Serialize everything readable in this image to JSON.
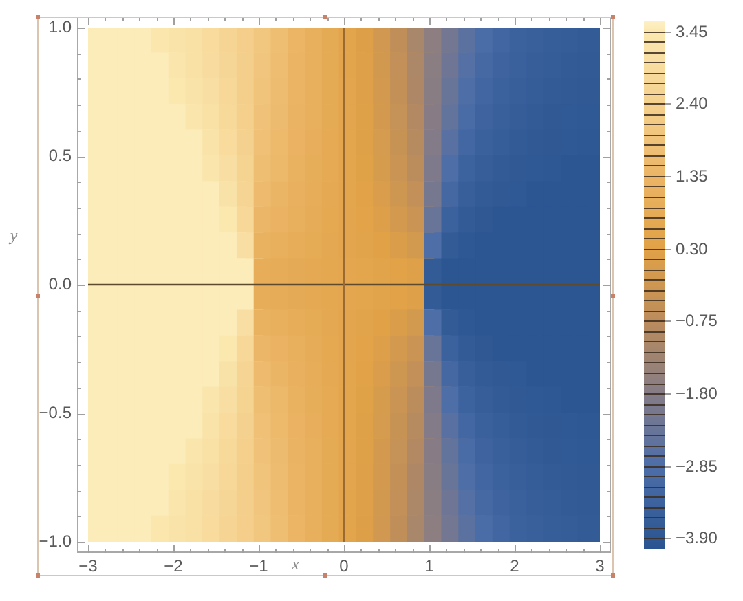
{
  "chart_data": {
    "type": "scatter",
    "xlabel": "x",
    "ylabel": "y",
    "marker": "square",
    "x": [
      -2.9,
      -2.7,
      -2.5,
      -2.3,
      -2.1,
      -1.9,
      -1.7,
      -1.5,
      -1.3,
      -1.1,
      -0.9,
      -0.7,
      -0.5,
      -0.3,
      -0.1,
      0.1,
      0.3,
      0.5,
      0.7,
      0.9,
      1.1,
      1.3,
      1.5,
      1.7,
      1.9,
      2.1,
      2.3,
      2.5,
      2.7,
      2.9,
      -2.9,
      -2.7,
      -2.5,
      -2.3,
      -2.1,
      -1.9,
      -1.7,
      -1.5,
      -1.3,
      -1.1,
      -0.9,
      -0.7,
      -0.5,
      -0.3,
      -0.1,
      0.1,
      0.3,
      0.5,
      0.7,
      0.9,
      1.1,
      1.3,
      1.5,
      1.7,
      1.9,
      2.1,
      2.3,
      2.5,
      2.7,
      2.9,
      -2.9,
      -2.7,
      -2.5,
      -2.3,
      -2.1,
      -1.9,
      -1.7,
      -1.5,
      -1.3,
      -1.1,
      -0.9,
      -0.7,
      -0.5,
      -0.3,
      -0.1,
      0.1,
      0.3,
      0.5,
      0.7,
      0.9,
      1.1,
      1.3,
      1.5,
      1.7,
      1.9,
      2.1,
      2.3,
      2.5,
      2.7,
      2.9,
      -2.9,
      -2.7,
      -2.5,
      -2.3,
      -2.1,
      -1.9,
      -1.7,
      -1.5,
      -1.3,
      -1.1,
      -0.9,
      -0.7,
      -0.5,
      -0.3,
      -0.1,
      0.1,
      0.3,
      0.5,
      0.7,
      0.9,
      1.1,
      1.3,
      1.5,
      1.7,
      1.9,
      2.1,
      2.3,
      2.5,
      2.7,
      2.9,
      -2.9,
      -2.7,
      -2.5,
      -2.3,
      -2.1,
      -1.9,
      -1.7,
      -1.5,
      -1.3,
      -1.1,
      -0.9,
      -0.7,
      -0.5,
      -0.3,
      -0.1,
      0.1,
      0.3,
      0.5,
      0.7,
      0.9,
      1.1,
      1.3,
      1.5,
      1.7,
      1.9,
      2.1,
      2.3,
      2.5,
      2.7,
      2.9,
      -2.9,
      -2.7,
      -2.5,
      -2.3,
      -2.1,
      -1.9,
      -1.7,
      -1.5,
      -1.3,
      -1.1,
      -0.9,
      -0.7,
      -0.5,
      -0.3,
      -0.1,
      0.1,
      0.3,
      0.5,
      0.7,
      0.9,
      1.1,
      1.3,
      1.5,
      1.7,
      1.9,
      2.1,
      2.3,
      2.5,
      2.7,
      2.9,
      -2.9,
      -2.7,
      -2.5,
      -2.3,
      -2.1,
      -1.9,
      -1.7,
      -1.5,
      -1.3,
      -1.1,
      -0.9,
      -0.7,
      -0.5,
      -0.3,
      -0.1,
      0.1,
      0.3,
      0.5,
      0.7,
      0.9,
      1.1,
      1.3,
      1.5,
      1.7,
      1.9,
      2.1,
      2.3,
      2.5,
      2.7,
      2.9,
      -2.9,
      -2.7,
      -2.5,
      -2.3,
      -2.1,
      -1.9,
      -1.7,
      -1.5,
      -1.3,
      -1.1,
      -0.9,
      -0.7,
      -0.5,
      -0.3,
      -0.1,
      0.1,
      0.3,
      0.5,
      0.7,
      0.9,
      1.1,
      1.3,
      1.5,
      1.7,
      1.9,
      2.1,
      2.3,
      2.5,
      2.7,
      2.9,
      -2.9,
      -2.7,
      -2.5,
      -2.3,
      -2.1,
      -1.9,
      -1.7,
      -1.5,
      -1.3,
      -1.1,
      -0.9,
      -0.7,
      -0.5,
      -0.3,
      -0.1,
      0.1,
      0.3,
      0.5,
      0.7,
      0.9,
      1.1,
      1.3,
      1.5,
      1.7,
      1.9,
      2.1,
      2.3,
      2.5,
      2.7,
      2.9,
      -2.9,
      -2.7,
      -2.5,
      -2.3,
      -2.1,
      -1.9,
      -1.7,
      -1.5,
      -1.3,
      -1.1,
      -0.9,
      -0.7,
      -0.5,
      -0.3,
      -0.1,
      0.1,
      0.3,
      0.5,
      0.7,
      0.9,
      1.1,
      1.3,
      1.5,
      1.7,
      1.9,
      2.1,
      2.3,
      2.5,
      2.7,
      2.9,
      -2.9,
      -2.7,
      -2.5,
      -2.3,
      -2.1,
      -1.9,
      -1.7,
      -1.5,
      -1.3,
      -1.1,
      -0.9,
      -0.7,
      -0.5,
      -0.3,
      -0.1,
      0.1,
      0.3,
      0.5,
      0.7,
      0.9,
      1.1,
      1.3,
      1.5,
      1.7,
      1.9,
      2.1,
      2.3,
      2.5,
      2.7,
      2.9,
      -2.9,
      -2.7,
      -2.5,
      -2.3,
      -2.1,
      -1.9,
      -1.7,
      -1.5,
      -1.3,
      -1.1,
      -0.9,
      -0.7,
      -0.5,
      -0.3,
      -0.1,
      0.1,
      0.3,
      0.5,
      0.7,
      0.9,
      1.1,
      1.3,
      1.5,
      1.7,
      1.9,
      2.1,
      2.3,
      2.5,
      2.7,
      2.9,
      -2.9,
      -2.7,
      -2.5,
      -2.3,
      -2.1,
      -1.9,
      -1.7,
      -1.5,
      -1.3,
      -1.1,
      -0.9,
      -0.7,
      -0.5,
      -0.3,
      -0.1,
      0.1,
      0.3,
      0.5,
      0.7,
      0.9,
      1.1,
      1.3,
      1.5,
      1.7,
      1.9,
      2.1,
      2.3,
      2.5,
      2.7,
      2.9,
      -2.9,
      -2.7,
      -2.5,
      -2.3,
      -2.1,
      -1.9,
      -1.7,
      -1.5,
      -1.3,
      -1.1,
      -0.9,
      -0.7,
      -0.5,
      -0.3,
      -0.1,
      0.1,
      0.3,
      0.5,
      0.7,
      0.9,
      1.1,
      1.3,
      1.5,
      1.7,
      1.9,
      2.1,
      2.3,
      2.5,
      2.7,
      2.9,
      -2.9,
      -2.7,
      -2.5,
      -2.3,
      -2.1,
      -1.9,
      -1.7,
      -1.5,
      -1.3,
      -1.1,
      -0.9,
      -0.7,
      -0.5,
      -0.3,
      -0.1,
      0.1,
      0.3,
      0.5,
      0.7,
      0.9,
      1.1,
      1.3,
      1.5,
      1.7,
      1.9,
      2.1,
      2.3,
      2.5,
      2.7,
      2.9,
      -2.9,
      -2.7,
      -2.5,
      -2.3,
      -2.1,
      -1.9,
      -1.7,
      -1.5,
      -1.3,
      -1.1,
      -0.9,
      -0.7,
      -0.5,
      -0.3,
      -0.1,
      0.1,
      0.3,
      0.5,
      0.7,
      0.9,
      1.1,
      1.3,
      1.5,
      1.7,
      1.9,
      2.1,
      2.3,
      2.5,
      2.7,
      2.9,
      -2.9,
      -2.7,
      -2.5,
      -2.3,
      -2.1,
      -1.9,
      -1.7,
      -1.5,
      -1.3,
      -1.1,
      -0.9,
      -0.7,
      -0.5,
      -0.3,
      -0.1,
      0.1,
      0.3,
      0.5,
      0.7,
      0.9,
      1.1,
      1.3,
      1.5,
      1.7,
      1.9,
      2.1,
      2.3,
      2.5,
      2.7,
      2.9,
      -2.9,
      -2.7,
      -2.5,
      -2.3,
      -2.1,
      -1.9,
      -1.7,
      -1.5,
      -1.3,
      -1.1,
      -0.9,
      -0.7,
      -0.5,
      -0.3,
      -0.1,
      0.1,
      0.3,
      0.5,
      0.7,
      0.9,
      1.1,
      1.3,
      1.5,
      1.7,
      1.9,
      2.1,
      2.3,
      2.5,
      2.7,
      2.9,
      -2.9,
      -2.7,
      -2.5,
      -2.3,
      -2.1,
      -1.9,
      -1.7,
      -1.5,
      -1.3,
      -1.1,
      -0.9,
      -0.7,
      -0.5,
      -0.3,
      -0.1,
      0.1,
      0.3,
      0.5,
      0.7,
      0.9,
      1.1,
      1.3,
      1.5,
      1.7,
      1.9,
      2.1,
      2.3,
      2.5,
      2.7,
      2.9,
      -2.9,
      -2.7,
      -2.5,
      -2.3,
      -2.1,
      -1.9,
      -1.7,
      -1.5,
      -1.3,
      -1.1,
      -0.9,
      -0.7,
      -0.5,
      -0.3,
      -0.1,
      0.1,
      0.3,
      0.5,
      0.7,
      0.9,
      1.1,
      1.3,
      1.5,
      1.7,
      1.9,
      2.1,
      2.3,
      2.5,
      2.7,
      2.9
    ],
    "values": [
      0.95,
      0.95,
      0.95,
      0.95,
      0.95,
      0.95,
      0.95,
      0.95,
      0.95,
      0.95,
      0.95,
      0.95,
      0.95,
      0.95,
      0.95,
      0.95,
      0.95,
      0.95,
      0.95,
      0.95,
      0.95,
      0.95,
      0.95,
      0.95,
      0.95,
      0.95,
      0.95,
      0.95,
      0.95,
      0.95,
      0.85,
      0.85,
      0.85,
      0.85,
      0.85,
      0.85,
      0.85,
      0.85,
      0.85,
      0.85,
      0.85,
      0.85,
      0.85,
      0.85,
      0.85,
      0.85,
      0.85,
      0.85,
      0.85,
      0.85,
      0.85,
      0.85,
      0.85,
      0.85,
      0.85,
      0.85,
      0.85,
      0.85,
      0.85,
      0.85,
      0.75,
      0.75,
      0.75,
      0.75,
      0.75,
      0.75,
      0.75,
      0.75,
      0.75,
      0.75,
      0.75,
      0.75,
      0.75,
      0.75,
      0.75,
      0.75,
      0.75,
      0.75,
      0.75,
      0.75,
      0.75,
      0.75,
      0.75,
      0.75,
      0.75,
      0.75,
      0.75,
      0.75,
      0.75,
      0.75,
      0.65,
      0.65,
      0.65,
      0.65,
      0.65,
      0.65,
      0.65,
      0.65,
      0.65,
      0.65,
      0.65,
      0.65,
      0.65,
      0.65,
      0.65,
      0.65,
      0.65,
      0.65,
      0.65,
      0.65,
      0.65,
      0.65,
      0.65,
      0.65,
      0.65,
      0.65,
      0.65,
      0.65,
      0.65,
      0.65,
      0.55,
      0.55,
      0.55,
      0.55,
      0.55,
      0.55,
      0.55,
      0.55,
      0.55,
      0.55,
      0.55,
      0.55,
      0.55,
      0.55,
      0.55,
      0.55,
      0.55,
      0.55,
      0.55,
      0.55,
      0.55,
      0.55,
      0.55,
      0.55,
      0.55,
      0.55,
      0.55,
      0.55,
      0.55,
      0.55,
      0.45,
      0.45,
      0.45,
      0.45,
      0.45,
      0.45,
      0.45,
      0.45,
      0.45,
      0.45,
      0.45,
      0.45,
      0.45,
      0.45,
      0.45,
      0.45,
      0.45,
      0.45,
      0.45,
      0.45,
      0.45,
      0.45,
      0.45,
      0.45,
      0.45,
      0.45,
      0.45,
      0.45,
      0.45,
      0.45,
      0.35,
      0.35,
      0.35,
      0.35,
      0.35,
      0.35,
      0.35,
      0.35,
      0.35,
      0.35,
      0.35,
      0.35,
      0.35,
      0.35,
      0.35,
      0.35,
      0.35,
      0.35,
      0.35,
      0.35,
      0.35,
      0.35,
      0.35,
      0.35,
      0.35,
      0.35,
      0.35,
      0.35,
      0.35,
      0.35,
      0.25,
      0.25,
      0.25,
      0.25,
      0.25,
      0.25,
      0.25,
      0.25,
      0.25,
      0.25,
      0.25,
      0.25,
      0.25,
      0.25,
      0.25,
      0.25,
      0.25,
      0.25,
      0.25,
      0.25,
      0.25,
      0.25,
      0.25,
      0.25,
      0.25,
      0.25,
      0.25,
      0.25,
      0.25,
      0.25,
      0.15,
      0.15,
      0.15,
      0.15,
      0.15,
      0.15,
      0.15,
      0.15,
      0.15,
      0.15,
      0.15,
      0.15,
      0.15,
      0.15,
      0.15,
      0.15,
      0.15,
      0.15,
      0.15,
      0.15,
      0.15,
      0.15,
      0.15,
      0.15,
      0.15,
      0.15,
      0.15,
      0.15,
      0.15,
      0.15,
      0.05,
      0.05,
      0.05,
      0.05,
      0.05,
      0.05,
      0.05,
      0.05,
      0.05,
      0.05,
      0.05,
      0.05,
      0.05,
      0.05,
      0.05,
      0.05,
      0.05,
      0.05,
      0.05,
      0.05,
      0.05,
      0.05,
      0.05,
      0.05,
      0.05,
      0.05,
      0.05,
      0.05,
      0.05,
      0.05,
      -0.05,
      -0.05,
      -0.05,
      -0.05,
      -0.05,
      -0.05,
      -0.05,
      -0.05,
      -0.05,
      -0.05,
      -0.05,
      -0.05,
      -0.05,
      -0.05,
      -0.05,
      -0.05,
      -0.05,
      -0.05,
      -0.05,
      -0.05,
      -0.05,
      -0.05,
      -0.05,
      -0.05,
      -0.05,
      -0.05,
      -0.05,
      -0.05,
      -0.05,
      -0.05,
      -0.15,
      -0.15,
      -0.15,
      -0.15,
      -0.15,
      -0.15,
      -0.15,
      -0.15,
      -0.15,
      -0.15,
      -0.15,
      -0.15,
      -0.15,
      -0.15,
      -0.15,
      -0.15,
      -0.15,
      -0.15,
      -0.15,
      -0.15,
      -0.15,
      -0.15,
      -0.15,
      -0.15,
      -0.15,
      -0.15,
      -0.15,
      -0.15,
      -0.15,
      -0.15,
      -0.25,
      -0.25,
      -0.25,
      -0.25,
      -0.25,
      -0.25,
      -0.25,
      -0.25,
      -0.25,
      -0.25,
      -0.25,
      -0.25,
      -0.25,
      -0.25,
      -0.25,
      -0.25,
      -0.25,
      -0.25,
      -0.25,
      -0.25,
      -0.25,
      -0.25,
      -0.25,
      -0.25,
      -0.25,
      -0.25,
      -0.25,
      -0.25,
      -0.25,
      -0.25,
      -0.35,
      -0.35,
      -0.35,
      -0.35,
      -0.35,
      -0.35,
      -0.35,
      -0.35,
      -0.35,
      -0.35,
      -0.35,
      -0.35,
      -0.35,
      -0.35,
      -0.35,
      -0.35,
      -0.35,
      -0.35,
      -0.35,
      -0.35,
      -0.35,
      -0.35,
      -0.35,
      -0.35,
      -0.35,
      -0.35,
      -0.35,
      -0.35,
      -0.35,
      -0.35,
      -0.45,
      -0.45,
      -0.45,
      -0.45,
      -0.45,
      -0.45,
      -0.45,
      -0.45,
      -0.45,
      -0.45,
      -0.45,
      -0.45,
      -0.45,
      -0.45,
      -0.45,
      -0.45,
      -0.45,
      -0.45,
      -0.45,
      -0.45,
      -0.45,
      -0.45,
      -0.45,
      -0.45,
      -0.45,
      -0.45,
      -0.45,
      -0.45,
      -0.45,
      -0.45,
      -0.55,
      -0.55,
      -0.55,
      -0.55,
      -0.55,
      -0.55,
      -0.55,
      -0.55,
      -0.55,
      -0.55,
      -0.55,
      -0.55,
      -0.55,
      -0.55,
      -0.55,
      -0.55,
      -0.55,
      -0.55,
      -0.55,
      -0.55,
      -0.55,
      -0.55,
      -0.55,
      -0.55,
      -0.55,
      -0.55,
      -0.55,
      -0.55,
      -0.55,
      -0.55,
      -0.65,
      -0.65,
      -0.65,
      -0.65,
      -0.65,
      -0.65,
      -0.65,
      -0.65,
      -0.65,
      -0.65,
      -0.65,
      -0.65,
      -0.65,
      -0.65,
      -0.65,
      -0.65,
      -0.65,
      -0.65,
      -0.65,
      -0.65,
      -0.65,
      -0.65,
      -0.65,
      -0.65,
      -0.65,
      -0.65,
      -0.65,
      -0.65,
      -0.65,
      -0.65,
      -0.75,
      -0.75,
      -0.75,
      -0.75,
      -0.75,
      -0.75,
      -0.75,
      -0.75,
      -0.75,
      -0.75,
      -0.75,
      -0.75,
      -0.75,
      -0.75,
      -0.75,
      -0.75,
      -0.75,
      -0.75,
      -0.75,
      -0.75,
      -0.75,
      -0.75,
      -0.75,
      -0.75,
      -0.75,
      -0.75,
      -0.75,
      -0.75,
      -0.75,
      -0.75,
      -0.85,
      -0.85,
      -0.85,
      -0.85,
      -0.85,
      -0.85,
      -0.85,
      -0.85,
      -0.85,
      -0.85,
      -0.85,
      -0.85,
      -0.85,
      -0.85,
      -0.85,
      -0.85,
      -0.85,
      -0.85,
      -0.85,
      -0.85,
      -0.85,
      -0.85,
      -0.85,
      -0.85,
      -0.85,
      -0.85,
      -0.85,
      -0.85,
      -0.85,
      -0.85,
      -0.95,
      -0.95,
      -0.95,
      -0.95,
      -0.95,
      -0.95,
      -0.95,
      -0.95,
      -0.95,
      -0.95,
      -0.95,
      -0.95,
      -0.95,
      -0.95,
      -0.95,
      -0.95,
      -0.95,
      -0.95,
      -0.95,
      -0.95,
      -0.95,
      -0.95,
      -0.95,
      -0.95,
      -0.95,
      -0.95,
      -0.95,
      -0.95,
      -0.95,
      -0.95
    ],
    "cvalues": [
      3.52,
      3.52,
      3.52,
      3.52,
      3.4,
      3.23,
      3.07,
      2.85,
      2.59,
      2.3,
      2.0,
      1.69,
      1.33,
      1.06,
      0.75,
      0.48,
      0.2,
      -0.16,
      -0.61,
      -1.11,
      -1.66,
      -2.14,
      -2.58,
      -2.95,
      -3.25,
      -3.41,
      -3.52,
      -3.61,
      -3.67,
      -3.72,
      3.52,
      3.52,
      3.52,
      3.52,
      3.52,
      3.31,
      3.15,
      2.92,
      2.64,
      2.32,
      1.95,
      1.65,
      1.3,
      1.05,
      0.74,
      0.48,
      0.21,
      -0.13,
      -0.57,
      -1.05,
      -1.69,
      -2.22,
      -2.7,
      -3.08,
      -3.35,
      -3.48,
      -3.59,
      -3.66,
      -3.72,
      -3.76,
      3.52,
      3.52,
      3.52,
      3.52,
      3.52,
      3.43,
      3.22,
      3.01,
      2.7,
      2.34,
      1.91,
      1.62,
      1.28,
      1.03,
      0.74,
      0.49,
      0.22,
      -0.11,
      -0.53,
      -1.0,
      -1.72,
      -2.33,
      -2.83,
      -3.23,
      -3.43,
      -3.56,
      -3.65,
      -3.72,
      -3.77,
      -3.81,
      3.52,
      3.52,
      3.52,
      3.52,
      3.52,
      3.52,
      3.32,
      3.1,
      2.77,
      2.38,
      1.85,
      1.58,
      1.25,
      1.01,
      0.73,
      0.49,
      0.24,
      -0.08,
      -0.48,
      -0.93,
      -1.77,
      -2.45,
      -3.0,
      -3.36,
      -3.53,
      -3.64,
      -3.72,
      -3.78,
      -3.82,
      -3.85,
      3.52,
      3.52,
      3.52,
      3.52,
      3.52,
      3.52,
      3.52,
      3.21,
      2.87,
      2.42,
      1.78,
      1.52,
      1.21,
      0.99,
      0.72,
      0.5,
      0.26,
      -0.04,
      -0.42,
      -0.84,
      -1.84,
      -2.62,
      -3.2,
      -3.47,
      -3.63,
      -3.72,
      -3.78,
      -3.83,
      -3.87,
      -3.91,
      3.52,
      3.52,
      3.52,
      3.52,
      3.52,
      3.52,
      3.52,
      3.35,
      3.01,
      2.47,
      1.69,
      1.46,
      1.17,
      0.96,
      0.72,
      0.5,
      0.28,
      0.01,
      -0.35,
      -0.74,
      -1.93,
      -2.83,
      -3.38,
      -3.6,
      -3.72,
      -3.8,
      -3.85,
      -3.89,
      -3.97,
      -3.97,
      3.52,
      3.52,
      3.52,
      3.52,
      3.52,
      3.52,
      3.52,
      3.52,
      3.17,
      2.55,
      1.55,
      1.34,
      1.1,
      0.91,
      0.7,
      0.52,
      0.33,
      0.08,
      -0.22,
      -0.57,
      -2.08,
      -3.13,
      -3.55,
      -3.72,
      -3.81,
      -3.87,
      -3.97,
      -3.97,
      -3.97,
      -3.97,
      3.52,
      3.52,
      3.52,
      3.52,
      3.52,
      3.52,
      3.52,
      3.52,
      3.43,
      2.7,
      1.38,
      1.21,
      1.01,
      0.86,
      0.68,
      0.53,
      0.37,
      0.18,
      -0.08,
      -0.36,
      -2.33,
      -3.43,
      -3.72,
      -3.84,
      -3.97,
      -3.97,
      -3.97,
      -3.97,
      -3.97,
      -3.97,
      3.52,
      3.52,
      3.52,
      3.52,
      3.52,
      3.52,
      3.52,
      3.52,
      3.52,
      3.01,
      1.17,
      1.04,
      0.9,
      0.79,
      0.66,
      0.55,
      0.44,
      0.29,
      0.11,
      -0.1,
      -2.83,
      -3.72,
      -3.89,
      -3.97,
      -3.97,
      -3.97,
      -3.97,
      -3.97,
      -3.97,
      -3.97,
      3.52,
      3.52,
      3.52,
      3.52,
      3.52,
      3.52,
      3.52,
      3.52,
      3.52,
      3.52,
      0.91,
      0.84,
      0.76,
      0.7,
      0.63,
      0.57,
      0.51,
      0.43,
      0.33,
      0.22,
      -3.72,
      -3.97,
      -3.97,
      -3.97,
      -3.97,
      -3.97,
      -3.97,
      -3.97,
      -3.97,
      -3.97,
      3.52,
      3.52,
      3.52,
      3.52,
      3.52,
      3.52,
      3.52,
      3.52,
      3.52,
      3.52,
      0.91,
      0.84,
      0.76,
      0.7,
      0.63,
      0.57,
      0.51,
      0.43,
      0.33,
      0.22,
      -3.72,
      -3.97,
      -3.97,
      -3.97,
      -3.97,
      -3.97,
      -3.97,
      -3.97,
      -3.97,
      -3.97,
      3.52,
      3.52,
      3.52,
      3.52,
      3.52,
      3.52,
      3.52,
      3.52,
      3.52,
      3.01,
      1.17,
      1.04,
      0.9,
      0.79,
      0.66,
      0.55,
      0.44,
      0.29,
      0.11,
      -0.1,
      -2.83,
      -3.72,
      -3.89,
      -3.97,
      -3.97,
      -3.97,
      -3.97,
      -3.97,
      -3.97,
      -3.97,
      3.52,
      3.52,
      3.52,
      3.52,
      3.52,
      3.52,
      3.52,
      3.52,
      3.43,
      2.7,
      1.38,
      1.21,
      1.01,
      0.86,
      0.68,
      0.53,
      0.37,
      0.18,
      -0.08,
      -0.36,
      -2.33,
      -3.43,
      -3.72,
      -3.84,
      -3.97,
      -3.97,
      -3.97,
      -3.97,
      -3.97,
      -3.97,
      3.52,
      3.52,
      3.52,
      3.52,
      3.52,
      3.52,
      3.52,
      3.52,
      3.17,
      2.55,
      1.55,
      1.34,
      1.1,
      0.91,
      0.7,
      0.52,
      0.33,
      0.08,
      -0.22,
      -0.57,
      -2.08,
      -3.13,
      -3.55,
      -3.72,
      -3.81,
      -3.87,
      -3.97,
      -3.97,
      -3.97,
      -3.97,
      3.52,
      3.52,
      3.52,
      3.52,
      3.52,
      3.52,
      3.52,
      3.35,
      3.01,
      2.47,
      1.69,
      1.46,
      1.17,
      0.96,
      0.72,
      0.5,
      0.28,
      0.01,
      -0.35,
      -0.74,
      -1.93,
      -2.83,
      -3.38,
      -3.6,
      -3.72,
      -3.8,
      -3.85,
      -3.89,
      -3.97,
      -3.97,
      3.52,
      3.52,
      3.52,
      3.52,
      3.52,
      3.52,
      3.52,
      3.21,
      2.87,
      2.42,
      1.78,
      1.52,
      1.21,
      0.99,
      0.72,
      0.5,
      0.26,
      -0.04,
      -0.42,
      -0.84,
      -1.84,
      -2.62,
      -3.2,
      -3.47,
      -3.63,
      -3.72,
      -3.78,
      -3.83,
      -3.87,
      -3.91,
      3.52,
      3.52,
      3.52,
      3.52,
      3.52,
      3.52,
      3.32,
      3.1,
      2.77,
      2.38,
      1.85,
      1.58,
      1.25,
      1.01,
      0.73,
      0.49,
      0.24,
      -0.08,
      -0.48,
      -0.93,
      -1.77,
      -2.45,
      -3.0,
      -3.36,
      -3.53,
      -3.64,
      -3.72,
      -3.78,
      -3.82,
      -3.85,
      3.52,
      3.52,
      3.52,
      3.52,
      3.52,
      3.43,
      3.22,
      3.01,
      2.7,
      2.34,
      1.91,
      1.62,
      1.28,
      1.03,
      0.74,
      0.49,
      0.22,
      -0.11,
      -0.53,
      -1.0,
      -1.72,
      -2.33,
      -2.83,
      -3.23,
      -3.43,
      -3.56,
      -3.65,
      -3.72,
      -3.77,
      -3.81,
      3.52,
      3.52,
      3.52,
      3.52,
      3.52,
      3.31,
      3.15,
      2.92,
      2.64,
      2.32,
      1.95,
      1.65,
      1.3,
      1.05,
      0.74,
      0.48,
      0.21,
      -0.13,
      -0.57,
      -1.05,
      -1.69,
      -2.22,
      -2.7,
      -3.08,
      -3.35,
      -3.48,
      -3.59,
      -3.66,
      -3.72,
      -3.76,
      3.52,
      3.52,
      3.52,
      3.52,
      3.4,
      3.23,
      3.07,
      2.85,
      2.59,
      2.3,
      2.0,
      1.69,
      1.33,
      1.06,
      0.75,
      0.48,
      0.2,
      -0.16,
      -0.61,
      -1.11,
      -1.66,
      -2.14,
      -2.58,
      -2.95,
      -3.25,
      -3.41,
      -3.52,
      -3.61,
      -3.67,
      -3.72
    ],
    "clim": [
      -4.05,
      3.6
    ],
    "cticks": [
      {
        "value": -3.9,
        "label": "−3.90"
      },
      {
        "value": -3.75,
        "label": null
      },
      {
        "value": -3.6,
        "label": null
      },
      {
        "value": -3.45,
        "label": null
      },
      {
        "value": -3.3,
        "label": null
      },
      {
        "value": -3.15,
        "label": null
      },
      {
        "value": -3.0,
        "label": null
      },
      {
        "value": -2.85,
        "label": "−2.85"
      },
      {
        "value": -2.7,
        "label": null
      },
      {
        "value": -2.55,
        "label": null
      },
      {
        "value": -2.4,
        "label": null
      },
      {
        "value": -2.25,
        "label": null
      },
      {
        "value": -2.1,
        "label": null
      },
      {
        "value": -1.95,
        "label": null
      },
      {
        "value": -1.8,
        "label": "−1.80"
      },
      {
        "value": -1.65,
        "label": null
      },
      {
        "value": -1.5,
        "label": null
      },
      {
        "value": -1.35,
        "label": null
      },
      {
        "value": -1.2,
        "label": null
      },
      {
        "value": -1.05,
        "label": null
      },
      {
        "value": -0.9,
        "label": null
      },
      {
        "value": -0.75,
        "label": "−0.75"
      },
      {
        "value": -0.6,
        "label": null
      },
      {
        "value": -0.45,
        "label": null
      },
      {
        "value": -0.3,
        "label": null
      },
      {
        "value": -0.15,
        "label": null
      },
      {
        "value": 0,
        "label": null
      },
      {
        "value": 0.15,
        "label": null
      },
      {
        "value": 0.3,
        "label": "0.30"
      },
      {
        "value": 0.45,
        "label": null
      },
      {
        "value": 0.6,
        "label": null
      },
      {
        "value": 0.75,
        "label": null
      },
      {
        "value": 0.9,
        "label": null
      },
      {
        "value": 1.05,
        "label": null
      },
      {
        "value": 1.2,
        "label": null
      },
      {
        "value": 1.35,
        "label": "1.35"
      },
      {
        "value": 1.5,
        "label": null
      },
      {
        "value": 1.65,
        "label": null
      },
      {
        "value": 1.8,
        "label": null
      },
      {
        "value": 1.95,
        "label": null
      },
      {
        "value": 2.1,
        "label": null
      },
      {
        "value": 2.25,
        "label": null
      },
      {
        "value": 2.4,
        "label": "2.40"
      },
      {
        "value": 2.55,
        "label": null
      },
      {
        "value": 2.7,
        "label": null
      },
      {
        "value": 2.85,
        "label": null
      },
      {
        "value": 3.0,
        "label": null
      },
      {
        "value": 3.15,
        "label": null
      },
      {
        "value": 3.3,
        "label": null
      },
      {
        "value": 3.45,
        "label": "3.45"
      }
    ],
    "xlim": [
      -3,
      3
    ],
    "ylim": [
      -1,
      1
    ],
    "xticks": [
      {
        "value": -3,
        "label": "−3"
      },
      {
        "value": -2.8,
        "label": null
      },
      {
        "value": -2.6,
        "label": null
      },
      {
        "value": -2.4,
        "label": null
      },
      {
        "value": -2.2,
        "label": null
      },
      {
        "value": -2,
        "label": "−2"
      },
      {
        "value": -1.8,
        "label": null
      },
      {
        "value": -1.6,
        "label": null
      },
      {
        "value": -1.4,
        "label": null
      },
      {
        "value": -1.2,
        "label": null
      },
      {
        "value": -1,
        "label": "−1"
      },
      {
        "value": -0.8,
        "label": null
      },
      {
        "value": -0.6,
        "label": null
      },
      {
        "value": -0.4,
        "label": null
      },
      {
        "value": -0.2,
        "label": null
      },
      {
        "value": 0,
        "label": "0"
      },
      {
        "value": 0.2,
        "label": null
      },
      {
        "value": 0.4,
        "label": null
      },
      {
        "value": 0.6,
        "label": null
      },
      {
        "value": 0.8,
        "label": null
      },
      {
        "value": 1,
        "label": "1"
      },
      {
        "value": 1.2,
        "label": null
      },
      {
        "value": 1.4,
        "label": null
      },
      {
        "value": 1.6,
        "label": null
      },
      {
        "value": 1.8,
        "label": null
      },
      {
        "value": 2,
        "label": "2"
      },
      {
        "value": 2.2,
        "label": null
      },
      {
        "value": 2.4,
        "label": null
      },
      {
        "value": 2.6,
        "label": null
      },
      {
        "value": 2.8,
        "label": null
      },
      {
        "value": 3,
        "label": "3"
      }
    ],
    "yticks": [
      {
        "value": -1,
        "label": "−1.0"
      },
      {
        "value": -0.9,
        "label": null
      },
      {
        "value": -0.8,
        "label": null
      },
      {
        "value": -0.7,
        "label": null
      },
      {
        "value": -0.6,
        "label": null
      },
      {
        "value": -0.5,
        "label": "−0.5"
      },
      {
        "value": -0.4,
        "label": null
      },
      {
        "value": -0.3,
        "label": null
      },
      {
        "value": -0.2,
        "label": null
      },
      {
        "value": -0.1,
        "label": null
      },
      {
        "value": 0,
        "label": "0.0"
      },
      {
        "value": 0.1,
        "label": null
      },
      {
        "value": 0.2,
        "label": null
      },
      {
        "value": 0.3,
        "label": null
      },
      {
        "value": 0.4,
        "label": null
      },
      {
        "value": 0.5,
        "label": "0.5"
      },
      {
        "value": 0.6,
        "label": null
      },
      {
        "value": 0.7,
        "label": null
      },
      {
        "value": 0.8,
        "label": null
      },
      {
        "value": 0.9,
        "label": null
      },
      {
        "value": 1,
        "label": "1.0"
      }
    ],
    "ref_lines": [
      {
        "axis": "y",
        "value": 0,
        "color": "#5e4a2c"
      },
      {
        "axis": "x",
        "value": 0,
        "color": "#9a6a32"
      }
    ]
  }
}
